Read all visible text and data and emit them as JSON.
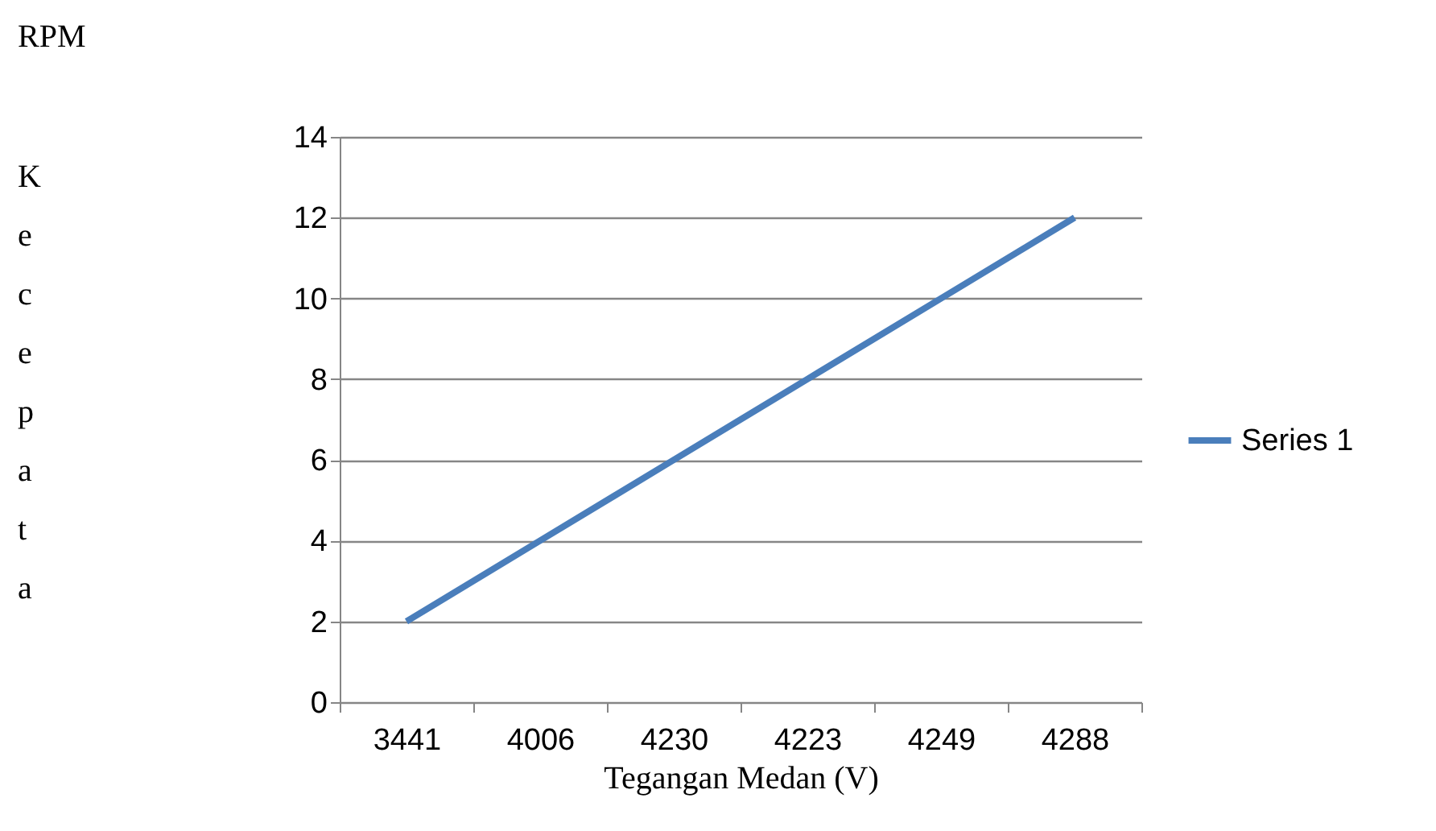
{
  "chart_data": {
    "type": "line",
    "categories": [
      "3441",
      "4006",
      "4230",
      "4223",
      "4249",
      "4288"
    ],
    "series": [
      {
        "name": "Series 1",
        "color": "#4a7ebb",
        "values": [
          2,
          4,
          6,
          8,
          10,
          12
        ]
      }
    ],
    "xlabel": "Tegangan    Medan (V)",
    "annotations": [
      "RPM",
      "Kecepata"
    ],
    "ylim": [
      0,
      14
    ],
    "yticks": [
      0,
      2,
      4,
      6,
      8,
      10,
      12,
      14
    ],
    "grid": "y",
    "legend": "right",
    "marker": "none",
    "line_style": "solid"
  }
}
